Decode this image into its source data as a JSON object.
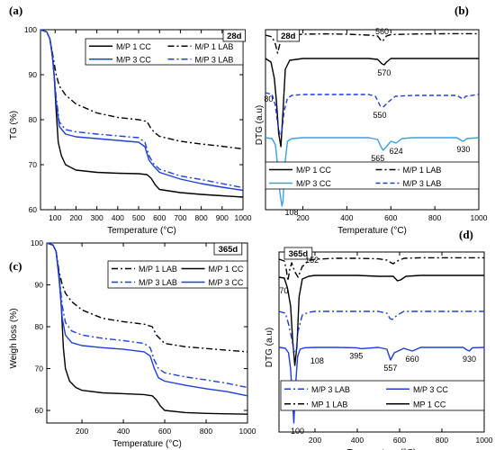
{
  "chart_data": [
    {
      "id": "a",
      "type": "line",
      "panel_label": "(a)",
      "tag": "28d",
      "xlabel": "Temperature (°C)",
      "ylabel": "TG (%)",
      "xlim": [
        30,
        1000
      ],
      "ylim": [
        60,
        100
      ],
      "xticks": [
        100,
        200,
        300,
        400,
        500,
        600,
        700,
        800,
        900,
        1000
      ],
      "yticks": [
        60,
        70,
        80,
        90,
        100
      ],
      "legend": {
        "position": "top-right",
        "columns": 2,
        "order": [
          "M/P 1  CC",
          "M/P 1 LAB",
          "M/P 3 CC",
          "M/P 3 LAB"
        ]
      },
      "series": [
        {
          "name": "M/P 1  CC",
          "color": "#000000",
          "style": "solid",
          "x": [
            30,
            60,
            75,
            85,
            95,
            105,
            115,
            130,
            150,
            200,
            300,
            400,
            500,
            540,
            560,
            580,
            600,
            700,
            800,
            900,
            1000
          ],
          "y": [
            100,
            99.5,
            98,
            95,
            90,
            82,
            75,
            72,
            70,
            68.8,
            68.3,
            68.1,
            68,
            67.8,
            67,
            65.5,
            64.5,
            63.8,
            63.4,
            63.1,
            62.8
          ]
        },
        {
          "name": "M/P 1 LAB",
          "color": "#000000",
          "style": "dashdot",
          "x": [
            30,
            60,
            75,
            90,
            105,
            120,
            150,
            200,
            300,
            400,
            500,
            540,
            560,
            580,
            600,
            700,
            800,
            900,
            1000
          ],
          "y": [
            100,
            99.5,
            98,
            94,
            90,
            87.5,
            85.5,
            83.5,
            81.5,
            80.5,
            80,
            79.6,
            78,
            77,
            76.3,
            75.2,
            74.6,
            74.1,
            73.5
          ]
        },
        {
          "name": "M/P 3 CC",
          "color": "#1f3fd8",
          "style": "solid",
          "x": [
            30,
            60,
            75,
            90,
            105,
            120,
            150,
            200,
            300,
            400,
            500,
            530,
            550,
            570,
            600,
            700,
            800,
            900,
            1000
          ],
          "y": [
            100,
            99.5,
            98,
            93,
            84,
            78.5,
            76.8,
            76.2,
            75.8,
            75.4,
            75,
            74,
            71,
            69.8,
            68.3,
            66.8,
            65.8,
            65,
            64.3
          ]
        },
        {
          "name": "M/P 3 LAB",
          "color": "#1f3fd8",
          "style": "dashdot",
          "x": [
            30,
            60,
            75,
            90,
            105,
            120,
            150,
            200,
            300,
            400,
            500,
            530,
            550,
            570,
            600,
            700,
            800,
            900,
            1000
          ],
          "y": [
            100,
            99.5,
            98,
            93,
            85,
            79.5,
            77.8,
            77.3,
            76.8,
            76.4,
            76,
            75,
            72,
            70.3,
            69,
            67.5,
            66.7,
            65.8,
            64.9
          ]
        }
      ]
    },
    {
      "id": "b",
      "type": "line",
      "panel_label": "(b)",
      "tag": "28d",
      "xlabel": "Temperature (°C)",
      "ylabel": "DTG (a.u)",
      "xlim": [
        30,
        1000
      ],
      "ylim": [
        0,
        100
      ],
      "xticks": [
        200,
        400,
        600,
        800,
        1000
      ],
      "yticks": [],
      "legend": {
        "position": "bottom-right",
        "columns": 2,
        "order": [
          "M/P 1  CC",
          "M/P 1 LAB",
          "M/P 3 CC",
          "M/P 3 LAB"
        ]
      },
      "series": [
        {
          "name": "M/P 1 LAB",
          "color": "#000000",
          "style": "dashdot",
          "x": [
            30,
            60,
            75,
            85,
            95,
            105,
            120,
            150,
            200,
            300,
            400,
            500,
            540,
            555,
            560,
            565,
            580,
            600,
            700,
            800,
            900,
            1000
          ],
          "y": [
            97,
            96,
            92,
            87,
            92,
            95,
            96.5,
            97,
            97.5,
            97.7,
            97.5,
            97,
            96.5,
            94,
            93.5,
            94,
            96.5,
            97.3,
            97.6,
            97.7,
            97.8,
            97.8
          ]
        },
        {
          "name": "M/P 1  CC",
          "color": "#000000",
          "style": "solid",
          "x": [
            30,
            55,
            70,
            80,
            90,
            100,
            110,
            120,
            140,
            200,
            300,
            400,
            500,
            540,
            560,
            570,
            580,
            600,
            700,
            800,
            900,
            1000
          ],
          "y": [
            84,
            82,
            73,
            60,
            42,
            35,
            55,
            78,
            83,
            84,
            84,
            84,
            84,
            83.5,
            81,
            80.5,
            82,
            84,
            84,
            84,
            84,
            84
          ]
        },
        {
          "name": "M/P 3 LAB",
          "color": "#1f3fd8",
          "style": "dashed",
          "x": [
            30,
            60,
            75,
            85,
            95,
            105,
            115,
            130,
            150,
            200,
            300,
            400,
            500,
            530,
            550,
            565,
            590,
            620,
            700,
            800,
            900,
            920,
            930,
            940,
            1000
          ],
          "y": [
            65,
            64,
            58,
            48,
            42,
            44,
            55,
            62,
            63.5,
            64,
            64,
            64,
            64,
            63,
            58,
            57,
            60,
            63,
            63.5,
            63.5,
            63.5,
            62,
            61.5,
            63,
            64
          ]
        },
        {
          "name": "M/P 3 CC",
          "color": "#37a3e0",
          "style": "solid",
          "x": [
            30,
            60,
            75,
            85,
            95,
            105,
            110,
            118,
            130,
            150,
            200,
            300,
            400,
            500,
            540,
            555,
            565,
            580,
            600,
            624,
            650,
            700,
            800,
            900,
            920,
            930,
            945,
            1000
          ],
          "y": [
            40,
            39.5,
            36,
            25,
            10,
            2,
            5,
            25,
            38,
            39.5,
            40,
            40,
            40,
            40,
            39,
            35,
            33,
            35,
            38,
            37,
            39.5,
            40,
            40,
            40,
            38.5,
            38,
            39.5,
            40
          ]
        }
      ],
      "annotations": [
        "80",
        "108",
        "560",
        "570",
        "550",
        "565",
        "624",
        "930"
      ]
    },
    {
      "id": "c",
      "type": "line",
      "panel_label": "(c)",
      "tag": "365d",
      "xlabel": "Temperature (°C)",
      "ylabel": "Weigh loss (%)",
      "xlim": [
        30,
        1000
      ],
      "ylim": [
        57,
        100
      ],
      "xticks": [
        200,
        400,
        600,
        800,
        1000
      ],
      "yticks": [
        60,
        70,
        80,
        90,
        100
      ],
      "legend": {
        "position": "top-right",
        "columns": 2,
        "order": [
          "M/P 1 LAB",
          "M/P 1 CC",
          "M/P 3 LAB",
          "M/P 3 CC"
        ]
      },
      "series": [
        {
          "name": "M/P 1 LAB",
          "color": "#000000",
          "style": "dashdot",
          "x": [
            30,
            60,
            75,
            90,
            105,
            120,
            150,
            200,
            300,
            400,
            500,
            540,
            560,
            580,
            600,
            700,
            800,
            900,
            1000
          ],
          "y": [
            100,
            99.5,
            98,
            93,
            90,
            88,
            86,
            84,
            82,
            81.2,
            80.6,
            80,
            78,
            77,
            76,
            75.2,
            74.8,
            74.4,
            74
          ]
        },
        {
          "name": "M/P 1 CC",
          "color": "#000000",
          "style": "solid",
          "x": [
            30,
            60,
            75,
            90,
            100,
            110,
            120,
            140,
            170,
            200,
            300,
            400,
            500,
            540,
            560,
            580,
            600,
            700,
            800,
            900,
            1000
          ],
          "y": [
            100,
            99.5,
            98,
            92,
            85,
            75,
            70,
            67,
            65.5,
            64.8,
            64.2,
            64,
            63.8,
            63.5,
            62.5,
            61,
            60,
            59.5,
            59.3,
            59.2,
            59.1
          ]
        },
        {
          "name": "M/P 3 LAB",
          "color": "#1f3fd8",
          "style": "dashdot",
          "x": [
            30,
            60,
            75,
            90,
            105,
            120,
            150,
            200,
            300,
            400,
            500,
            530,
            550,
            570,
            600,
            700,
            800,
            900,
            1000
          ],
          "y": [
            100,
            99.5,
            98,
            92,
            85,
            81,
            79,
            78,
            77.2,
            76.7,
            76,
            75,
            72,
            70,
            69,
            68,
            67.3,
            66.5,
            65.5
          ]
        },
        {
          "name": "M/P 3 CC",
          "color": "#1f3fd8",
          "style": "solid",
          "x": [
            30,
            60,
            75,
            90,
            105,
            120,
            150,
            200,
            300,
            400,
            500,
            530,
            550,
            570,
            600,
            700,
            800,
            900,
            1000
          ],
          "y": [
            100,
            99.5,
            98,
            91,
            82,
            78,
            76.2,
            75.5,
            75,
            74.6,
            74,
            73,
            70,
            67.8,
            67,
            66,
            65.2,
            64.5,
            63.5
          ]
        }
      ]
    },
    {
      "id": "d",
      "type": "line",
      "panel_label": "(d)",
      "tag": "365d",
      "xlabel": "Temperature (°C)",
      "ylabel": "DTG (a.u)",
      "xlim": [
        30,
        1000
      ],
      "ylim": [
        0,
        100
      ],
      "xticks": [
        200,
        400,
        600,
        800,
        1000
      ],
      "yticks": [],
      "legend": {
        "position": "bottom-right",
        "columns": 2,
        "order": [
          "M/P 3 LAB",
          "M/P 3 CC",
          "MP 1 LAB",
          "MP 1 CC"
        ]
      },
      "series": [
        {
          "name": "MP 1 LAB",
          "color": "#000000",
          "style": "dashdot",
          "x": [
            30,
            55,
            65,
            72,
            80,
            90,
            105,
            120,
            140,
            152,
            165,
            200,
            300,
            400,
            500,
            540,
            560,
            570,
            590,
            620,
            700,
            800,
            900,
            1000
          ],
          "y": [
            96,
            95,
            90,
            84,
            90,
            94,
            89,
            86,
            92,
            93,
            95,
            96,
            96.5,
            96.5,
            96.2,
            95.5,
            94,
            93.5,
            95,
            96.5,
            96.8,
            96.8,
            96.8,
            96.8
          ]
        },
        {
          "name": "MP 1 CC",
          "color": "#000000",
          "style": "solid",
          "x": [
            30,
            55,
            70,
            85,
            95,
            105,
            115,
            125,
            140,
            170,
            200,
            300,
            400,
            500,
            570,
            590,
            605,
            630,
            700,
            800,
            900,
            1000
          ],
          "y": [
            86,
            85.5,
            80,
            70,
            50,
            37,
            48,
            75,
            85,
            86.5,
            87,
            87,
            87,
            86.5,
            86.5,
            84,
            84.5,
            86.5,
            87,
            87,
            87,
            87
          ]
        },
        {
          "name": "M/P 3 LAB",
          "color": "#1f3fd8",
          "style": "dashdot",
          "x": [
            30,
            60,
            75,
            90,
            100,
            110,
            120,
            140,
            170,
            200,
            300,
            400,
            500,
            540,
            555,
            565,
            590,
            620,
            700,
            800,
            900,
            1000
          ],
          "y": [
            67,
            66,
            60,
            52,
            45,
            44,
            56,
            65,
            66.5,
            67,
            67,
            67,
            67,
            66,
            63,
            62.5,
            65,
            67,
            67,
            67,
            67,
            67
          ]
        },
        {
          "name": "M/P 3 CC",
          "color": "#1f3fd8",
          "style": "solid",
          "x": [
            30,
            60,
            75,
            85,
            95,
            100,
            108,
            118,
            130,
            150,
            200,
            300,
            395,
            420,
            500,
            540,
            557,
            575,
            620,
            660,
            700,
            800,
            900,
            920,
            930,
            945,
            1000
          ],
          "y": [
            47,
            46.5,
            44,
            35,
            15,
            5,
            25,
            42,
            46,
            46.8,
            47,
            47,
            46.8,
            46.3,
            47,
            46,
            40,
            44,
            46.5,
            45,
            47,
            47,
            47,
            45.5,
            45,
            46.8,
            47
          ]
        }
      ],
      "annotations": [
        "152",
        "70",
        "108",
        "395",
        "557",
        "660",
        "930",
        "100"
      ]
    }
  ]
}
